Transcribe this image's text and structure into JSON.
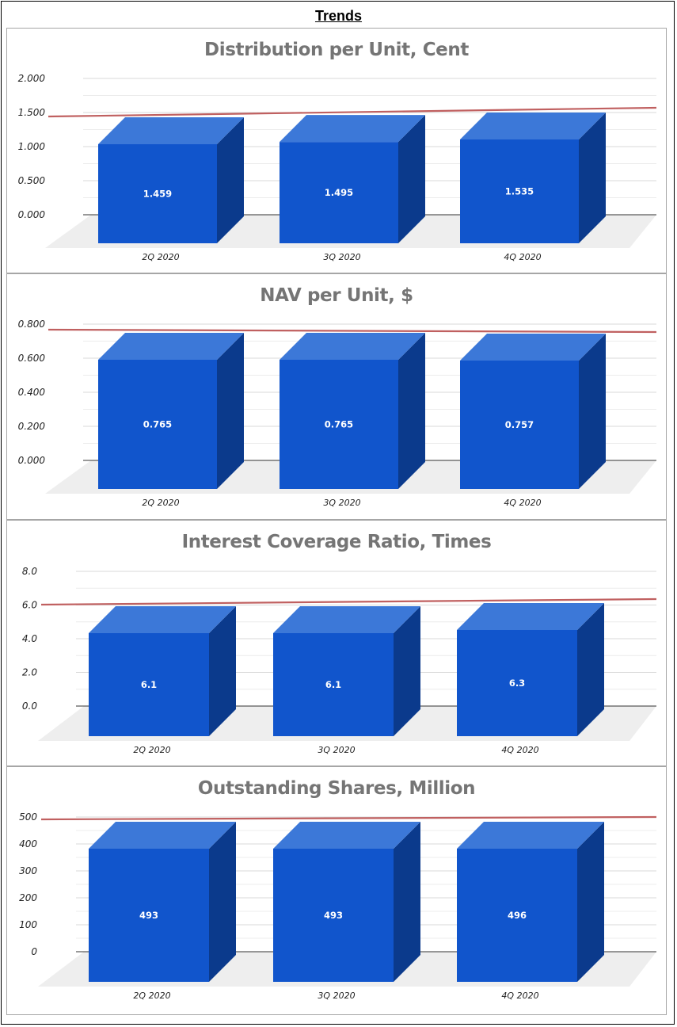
{
  "page_title": "Trends",
  "colors": {
    "bar_front": "#1155cc",
    "bar_top": "#3c78d8",
    "bar_side": "#0b3a8c",
    "trend_line": "#c06060",
    "floor": "#eeeeee",
    "gridline": "#d9d9d9",
    "title_gray": "#757575"
  },
  "chart_data": [
    {
      "type": "bar",
      "title": "Distribution per Unit, Cent",
      "categories": [
        "2Q 2020",
        "3Q 2020",
        "4Q 2020"
      ],
      "values": [
        1.459,
        1.495,
        1.535
      ],
      "data_labels": [
        "1.459",
        "1.495",
        "1.535"
      ],
      "y_ticks": [
        "0.000",
        "0.500",
        "1.000",
        "1.500",
        "2.000"
      ],
      "ylim": [
        0,
        2
      ],
      "trendline": true,
      "grid": true
    },
    {
      "type": "bar",
      "title": "NAV per Unit, $",
      "categories": [
        "2Q 2020",
        "3Q 2020",
        "4Q 2020"
      ],
      "values": [
        0.765,
        0.765,
        0.757
      ],
      "data_labels": [
        "0.765",
        "0.765",
        "0.757"
      ],
      "y_ticks": [
        "0.000",
        "0.200",
        "0.400",
        "0.600",
        "0.800"
      ],
      "ylim": [
        0,
        0.8
      ],
      "trendline": true,
      "grid": true
    },
    {
      "type": "bar",
      "title": "Interest Coverage Ratio, Times",
      "categories": [
        "2Q 2020",
        "3Q 2020",
        "4Q 2020"
      ],
      "values": [
        6.1,
        6.1,
        6.3
      ],
      "data_labels": [
        "6.1",
        "6.1",
        "6.3"
      ],
      "y_ticks": [
        "0.0",
        "2.0",
        "4.0",
        "6.0",
        "8.0"
      ],
      "ylim": [
        0,
        8
      ],
      "trendline": true,
      "grid": true
    },
    {
      "type": "bar",
      "title": "Outstanding Shares, Million",
      "categories": [
        "2Q 2020",
        "3Q 2020",
        "4Q 2020"
      ],
      "values": [
        493,
        493,
        496
      ],
      "data_labels": [
        "493",
        "493",
        "496"
      ],
      "y_ticks": [
        "0",
        "100",
        "200",
        "300",
        "400",
        "500"
      ],
      "ylim": [
        0,
        500
      ],
      "trendline": true,
      "grid": true
    }
  ]
}
